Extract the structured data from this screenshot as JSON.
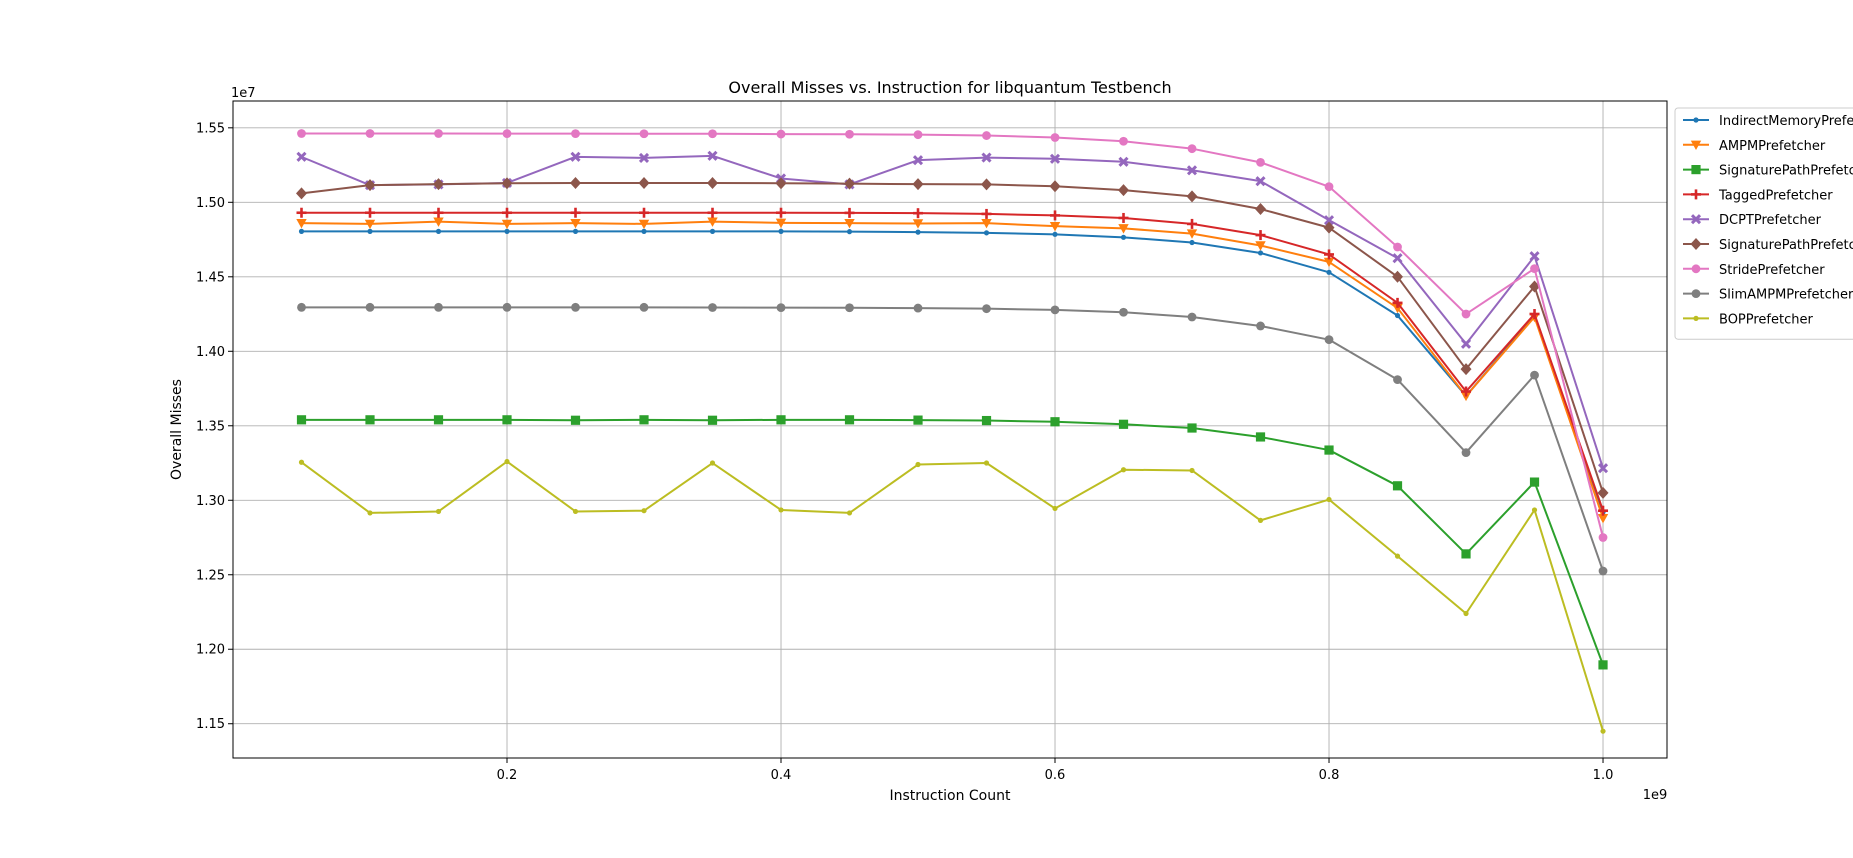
{
  "chart_data": {
    "type": "line",
    "title": "Overall Misses vs. Instruction for libquantum Testbench",
    "xlabel": "Instruction Count",
    "ylabel": "Overall Misses",
    "x_offset_label": "1e9",
    "y_offset_label": "1e7",
    "xlim": [
      0,
      1.0467
    ],
    "ylim": [
      11270000,
      15680000
    ],
    "x_ticks": [
      0.2,
      0.4,
      0.6,
      0.8,
      1.0
    ],
    "x_tick_labels": [
      "0.2",
      "0.4",
      "0.6",
      "0.8",
      "1.0"
    ],
    "y_ticks": [
      11500000,
      12000000,
      12500000,
      13000000,
      13500000,
      14000000,
      14500000,
      15000000,
      15500000
    ],
    "y_tick_labels": [
      "1.15",
      "1.20",
      "1.25",
      "1.30",
      "1.35",
      "1.40",
      "1.45",
      "1.50",
      "1.55"
    ],
    "grid": true,
    "legend_position": "outside right, top",
    "x": [
      0.05,
      0.1,
      0.15,
      0.2,
      0.25,
      0.3,
      0.35,
      0.4,
      0.45,
      0.5,
      0.55,
      0.6,
      0.65,
      0.7,
      0.75,
      0.8,
      0.85,
      0.9,
      0.95,
      1.0
    ],
    "series": [
      {
        "name": "IndirectMemoryPrefetcher",
        "color": "#1f77b4",
        "marker": "point",
        "values": [
          14805000,
          14805000,
          14805000,
          14805000,
          14805000,
          14805000,
          14805000,
          14805000,
          14803000,
          14800000,
          14795000,
          14785000,
          14765000,
          14730000,
          14660000,
          14530000,
          14240000,
          13700000,
          14240000,
          12920000
        ]
      },
      {
        "name": "AMPMPrefetcher",
        "color": "#ff7f0e",
        "marker": "triangle-down",
        "values": [
          14860000,
          14855000,
          14870000,
          14855000,
          14860000,
          14855000,
          14870000,
          14862000,
          14860000,
          14858000,
          14860000,
          14840000,
          14825000,
          14790000,
          14710000,
          14600000,
          14290000,
          13700000,
          14230000,
          12880000
        ]
      },
      {
        "name": "SignaturePathPrefetcher",
        "color": "#2ca02c",
        "marker": "square",
        "values": [
          13540000,
          13540000,
          13540000,
          13540000,
          13537000,
          13540000,
          13537000,
          13540000,
          13540000,
          13538000,
          13535000,
          13527000,
          13510000,
          13485000,
          13425000,
          13337000,
          13097000,
          12640000,
          13122000,
          11895000
        ]
      },
      {
        "name": "TaggedPrefetcher",
        "color": "#d62728",
        "marker": "plus",
        "values": [
          14930000,
          14930000,
          14930000,
          14930000,
          14930000,
          14930000,
          14930000,
          14930000,
          14929000,
          14927000,
          14922000,
          14912000,
          14895000,
          14855000,
          14780000,
          14650000,
          14325000,
          13730000,
          14250000,
          12930000
        ]
      },
      {
        "name": "DCPTPrefetcher",
        "color": "#9467bd",
        "marker": "x",
        "values": [
          15305000,
          15115000,
          15120000,
          15130000,
          15305000,
          15298000,
          15312000,
          15160000,
          15120000,
          15283000,
          15300000,
          15292000,
          15272000,
          15215000,
          15142000,
          14880000,
          14625000,
          14050000,
          14638000,
          13215000
        ]
      },
      {
        "name": "SignaturePathPrefetcher",
        "color": "#8c564b",
        "marker": "diamond",
        "values": [
          15060000,
          15115000,
          15122000,
          15128000,
          15130000,
          15130000,
          15130000,
          15128000,
          15125000,
          15122000,
          15120000,
          15108000,
          15082000,
          15040000,
          14955000,
          14830000,
          14500000,
          13880000,
          14435000,
          13050000
        ]
      },
      {
        "name": "StridePrefetcher",
        "color": "#e377c2",
        "marker": "circle",
        "values": [
          15462000,
          15462000,
          15462000,
          15461000,
          15461000,
          15460000,
          15460000,
          15458000,
          15457000,
          15454000,
          15448000,
          15435000,
          15410000,
          15360000,
          15268000,
          15105000,
          14700000,
          14250000,
          14555000,
          12750000
        ]
      },
      {
        "name": "SlimAMPMPrefetcher",
        "color": "#7f7f7f",
        "marker": "circle",
        "values": [
          14295000,
          14295000,
          14295000,
          14295000,
          14295000,
          14295000,
          14294000,
          14293000,
          14292000,
          14290000,
          14286000,
          14278000,
          14262000,
          14230000,
          14170000,
          14078000,
          13810000,
          13320000,
          13840000,
          12525000
        ]
      },
      {
        "name": "BOPPrefetcher",
        "color": "#bcbd22",
        "marker": "point",
        "values": [
          13255000,
          12915000,
          12925000,
          13260000,
          12925000,
          12930000,
          13250000,
          12935000,
          12915000,
          13240000,
          13250000,
          12945000,
          13205000,
          13200000,
          12865000,
          13005000,
          12625000,
          12240000,
          12935000,
          11450000
        ]
      }
    ]
  }
}
